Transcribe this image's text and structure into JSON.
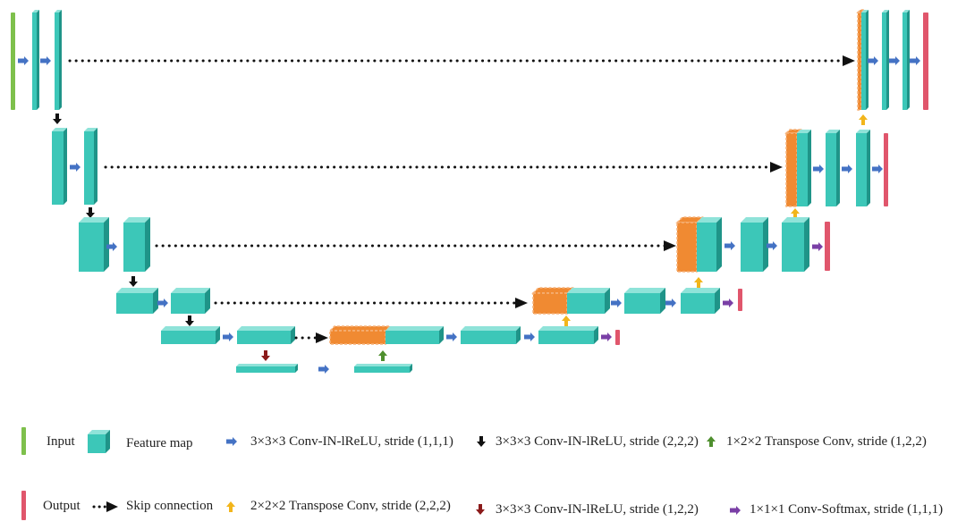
{
  "colors": {
    "feature_front": "#3cc7b8",
    "feature_top": "#8fe3d9",
    "feature_side": "#1f9488",
    "concat": "#f08a32",
    "concat_border": "#f6b27a",
    "input_bar": "#7ec04c",
    "output_bar": "#e0566c",
    "arrow_blue": "#4472c4",
    "arrow_black": "#111111",
    "arrow_green": "#4e8f2e",
    "arrow_yellow": "#f2b51b",
    "arrow_darkred": "#8b1a1a",
    "arrow_purple": "#7a3fa6"
  },
  "legend": {
    "input": "Input",
    "feature_map": "Feature map",
    "conv_stride_111": "3×3×3 Conv-IN-lReLU, stride (1,1,1)",
    "conv_stride_222": "3×3×3 Conv-IN-lReLU, stride (2,2,2)",
    "transpose_122": "1×2×2 Transpose Conv, stride (1,2,2)",
    "output": "Output",
    "skip": "Skip connection",
    "transpose_222": "2×2×2 Transpose Conv, stride (2,2,2)",
    "conv_stride_122": "3×3×3 Conv-IN-lReLU, stride (1,2,2)",
    "softmax": "1×1×1 Conv-Softmax, stride (1,1,1)"
  }
}
